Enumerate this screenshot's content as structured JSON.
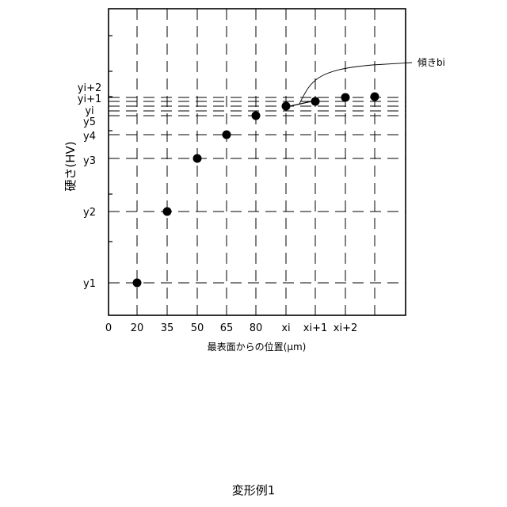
{
  "chart_data": {
    "type": "scatter",
    "xlabel": "最表面からの位置(μm)",
    "ylabel": "硬さ(HV)",
    "x_ticks": [
      "0",
      "20",
      "35",
      "50",
      "65",
      "80",
      "xi",
      "xi+1",
      "xi+2"
    ],
    "y_ticks": [
      "y1",
      "y2",
      "y3",
      "y4",
      "y5",
      "yi",
      "yi+1",
      "yi+2"
    ],
    "points": [
      {
        "x": "20",
        "y": "y1"
      },
      {
        "x": "35",
        "y": "y2"
      },
      {
        "x": "50",
        "y": "y3"
      },
      {
        "x": "65",
        "y": "y4"
      },
      {
        "x": "80",
        "y": "y5"
      },
      {
        "x": "xi",
        "y": "yi"
      },
      {
        "x": "xi+1",
        "y": "yi+1"
      },
      {
        "x": "xi+2",
        "y": "yi+2"
      },
      {
        "x": "",
        "y": ""
      }
    ],
    "annotation": "傾きbi",
    "grid": true
  },
  "caption": "変形例1"
}
